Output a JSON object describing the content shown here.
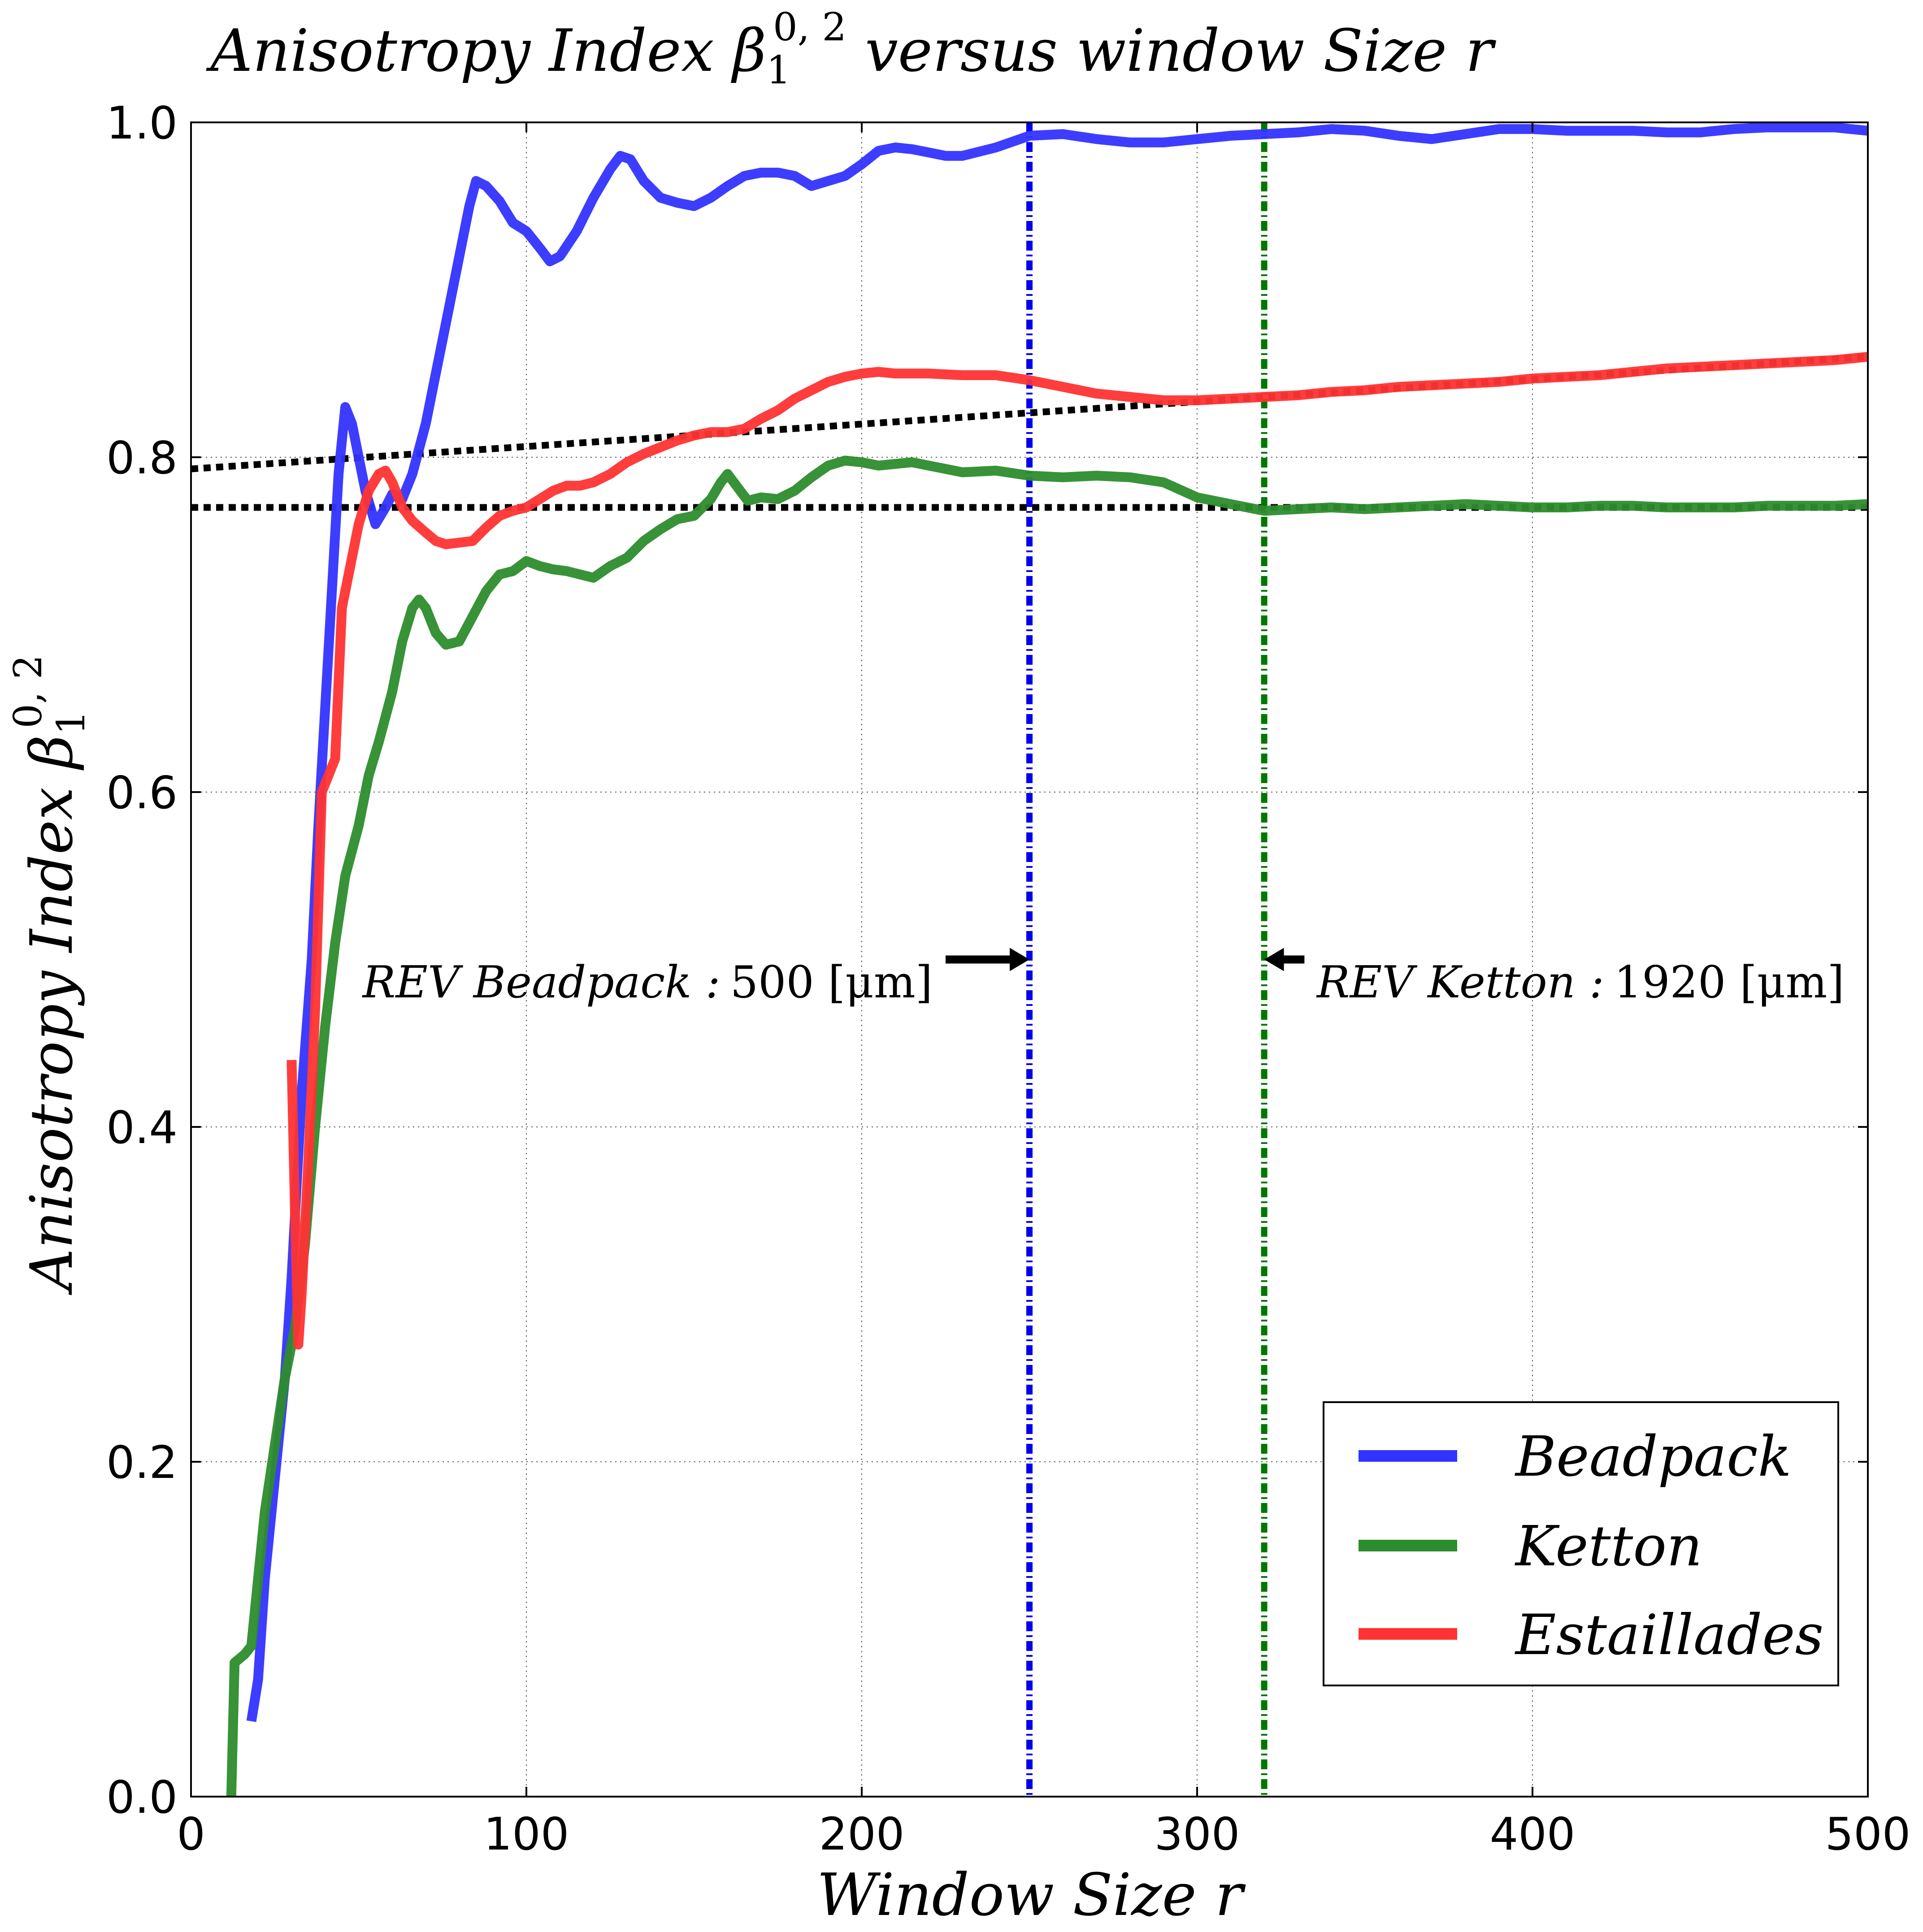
{
  "chart_data": {
    "type": "line",
    "title": "Anisotropy Index β₁^{0,2} versus window Size r",
    "title_parts": {
      "main": "Anisotropy Index ",
      "symbol": "β",
      "sub": "1",
      "sup": "0, 2",
      "tail": " versus window Size r"
    },
    "xlabel": "Window Size r",
    "ylabel": "Anisotropy Index β₁^{0,2}",
    "ylabel_parts": {
      "main": "Anisotropy Index ",
      "symbol": "β",
      "sub": "1",
      "sup": "0, 2"
    },
    "xlim": [
      0,
      500
    ],
    "ylim": [
      0.0,
      1.0
    ],
    "x_ticks": [
      0,
      100,
      200,
      300,
      400,
      500
    ],
    "x_tick_labels": [
      "0",
      "100",
      "200",
      "300",
      "400",
      "500"
    ],
    "y_ticks": [
      0.0,
      0.2,
      0.4,
      0.6,
      0.8,
      1.0
    ],
    "y_tick_labels": [
      "0.0",
      "0.2",
      "0.4",
      "0.6",
      "0.8",
      "1.0"
    ],
    "grid": true,
    "legend_position": "lower-right",
    "series": [
      {
        "name": "Beadpack",
        "color": "#3333ff",
        "points": [
          [
            18,
            0.045
          ],
          [
            20,
            0.07
          ],
          [
            22,
            0.13
          ],
          [
            25,
            0.19
          ],
          [
            28,
            0.25
          ],
          [
            30,
            0.31
          ],
          [
            33,
            0.42
          ],
          [
            36,
            0.5
          ],
          [
            38,
            0.58
          ],
          [
            40,
            0.65
          ],
          [
            42,
            0.72
          ],
          [
            44,
            0.79
          ],
          [
            46,
            0.83
          ],
          [
            48,
            0.82
          ],
          [
            50,
            0.8
          ],
          [
            52,
            0.78
          ],
          [
            55,
            0.76
          ],
          [
            58,
            0.77
          ],
          [
            60,
            0.778
          ],
          [
            63,
            0.775
          ],
          [
            66,
            0.79
          ],
          [
            70,
            0.82
          ],
          [
            73,
            0.85
          ],
          [
            76,
            0.88
          ],
          [
            80,
            0.92
          ],
          [
            83,
            0.95
          ],
          [
            85,
            0.965
          ],
          [
            88,
            0.962
          ],
          [
            92,
            0.953
          ],
          [
            96,
            0.94
          ],
          [
            100,
            0.935
          ],
          [
            104,
            0.925
          ],
          [
            107,
            0.917
          ],
          [
            110,
            0.92
          ],
          [
            115,
            0.935
          ],
          [
            120,
            0.955
          ],
          [
            125,
            0.972
          ],
          [
            128,
            0.98
          ],
          [
            131,
            0.978
          ],
          [
            135,
            0.965
          ],
          [
            140,
            0.955
          ],
          [
            145,
            0.952
          ],
          [
            150,
            0.95
          ],
          [
            155,
            0.955
          ],
          [
            160,
            0.962
          ],
          [
            165,
            0.968
          ],
          [
            170,
            0.97
          ],
          [
            175,
            0.97
          ],
          [
            180,
            0.968
          ],
          [
            185,
            0.962
          ],
          [
            190,
            0.965
          ],
          [
            195,
            0.968
          ],
          [
            200,
            0.975
          ],
          [
            205,
            0.983
          ],
          [
            210,
            0.985
          ],
          [
            215,
            0.984
          ],
          [
            220,
            0.982
          ],
          [
            225,
            0.98
          ],
          [
            230,
            0.98
          ],
          [
            240,
            0.985
          ],
          [
            250,
            0.992
          ],
          [
            260,
            0.993
          ],
          [
            270,
            0.99
          ],
          [
            280,
            0.988
          ],
          [
            290,
            0.988
          ],
          [
            300,
            0.99
          ],
          [
            310,
            0.992
          ],
          [
            320,
            0.993
          ],
          [
            330,
            0.994
          ],
          [
            340,
            0.996
          ],
          [
            350,
            0.995
          ],
          [
            360,
            0.992
          ],
          [
            370,
            0.99
          ],
          [
            380,
            0.993
          ],
          [
            390,
            0.996
          ],
          [
            400,
            0.996
          ],
          [
            410,
            0.995
          ],
          [
            420,
            0.995
          ],
          [
            430,
            0.995
          ],
          [
            440,
            0.994
          ],
          [
            450,
            0.994
          ],
          [
            460,
            0.996
          ],
          [
            470,
            0.997
          ],
          [
            480,
            0.997
          ],
          [
            490,
            0.997
          ],
          [
            500,
            0.995
          ]
        ]
      },
      {
        "name": "Ketton",
        "color": "#2d8c2d",
        "points": [
          [
            12,
            0.0
          ],
          [
            13,
            0.08
          ],
          [
            16,
            0.085
          ],
          [
            18,
            0.09
          ],
          [
            20,
            0.13
          ],
          [
            22,
            0.17
          ],
          [
            25,
            0.21
          ],
          [
            28,
            0.25
          ],
          [
            31,
            0.28
          ],
          [
            34,
            0.33
          ],
          [
            37,
            0.4
          ],
          [
            40,
            0.46
          ],
          [
            43,
            0.51
          ],
          [
            46,
            0.55
          ],
          [
            50,
            0.58
          ],
          [
            53,
            0.61
          ],
          [
            56,
            0.63
          ],
          [
            60,
            0.66
          ],
          [
            63,
            0.69
          ],
          [
            66,
            0.71
          ],
          [
            68,
            0.715
          ],
          [
            70,
            0.71
          ],
          [
            73,
            0.695
          ],
          [
            76,
            0.688
          ],
          [
            80,
            0.69
          ],
          [
            84,
            0.705
          ],
          [
            88,
            0.72
          ],
          [
            92,
            0.73
          ],
          [
            96,
            0.732
          ],
          [
            100,
            0.738
          ],
          [
            104,
            0.735
          ],
          [
            108,
            0.733
          ],
          [
            112,
            0.732
          ],
          [
            116,
            0.73
          ],
          [
            120,
            0.728
          ],
          [
            125,
            0.735
          ],
          [
            130,
            0.74
          ],
          [
            135,
            0.75
          ],
          [
            140,
            0.757
          ],
          [
            145,
            0.763
          ],
          [
            150,
            0.765
          ],
          [
            155,
            0.775
          ],
          [
            158,
            0.785
          ],
          [
            160,
            0.79
          ],
          [
            163,
            0.782
          ],
          [
            166,
            0.774
          ],
          [
            170,
            0.776
          ],
          [
            175,
            0.775
          ],
          [
            180,
            0.78
          ],
          [
            185,
            0.788
          ],
          [
            190,
            0.795
          ],
          [
            195,
            0.798
          ],
          [
            200,
            0.797
          ],
          [
            205,
            0.795
          ],
          [
            210,
            0.796
          ],
          [
            215,
            0.797
          ],
          [
            220,
            0.795
          ],
          [
            230,
            0.791
          ],
          [
            240,
            0.792
          ],
          [
            250,
            0.789
          ],
          [
            260,
            0.788
          ],
          [
            270,
            0.789
          ],
          [
            280,
            0.788
          ],
          [
            290,
            0.785
          ],
          [
            300,
            0.776
          ],
          [
            310,
            0.772
          ],
          [
            320,
            0.768
          ],
          [
            330,
            0.769
          ],
          [
            340,
            0.77
          ],
          [
            350,
            0.769
          ],
          [
            360,
            0.77
          ],
          [
            370,
            0.771
          ],
          [
            380,
            0.772
          ],
          [
            390,
            0.771
          ],
          [
            400,
            0.77
          ],
          [
            410,
            0.77
          ],
          [
            420,
            0.771
          ],
          [
            430,
            0.771
          ],
          [
            440,
            0.77
          ],
          [
            450,
            0.77
          ],
          [
            460,
            0.77
          ],
          [
            470,
            0.771
          ],
          [
            480,
            0.771
          ],
          [
            490,
            0.771
          ],
          [
            500,
            0.772
          ]
        ]
      },
      {
        "name": "Estaillades",
        "color": "#ff3333",
        "points": [
          [
            30,
            0.44
          ],
          [
            31,
            0.35
          ],
          [
            32,
            0.27
          ],
          [
            33,
            0.3
          ],
          [
            35,
            0.38
          ],
          [
            37,
            0.47
          ],
          [
            39,
            0.6
          ],
          [
            41,
            0.61
          ],
          [
            43,
            0.62
          ],
          [
            45,
            0.71
          ],
          [
            48,
            0.74
          ],
          [
            50,
            0.76
          ],
          [
            53,
            0.78
          ],
          [
            56,
            0.79
          ],
          [
            58,
            0.792
          ],
          [
            60,
            0.785
          ],
          [
            63,
            0.77
          ],
          [
            66,
            0.762
          ],
          [
            70,
            0.755
          ],
          [
            73,
            0.75
          ],
          [
            76,
            0.748
          ],
          [
            80,
            0.749
          ],
          [
            84,
            0.75
          ],
          [
            88,
            0.758
          ],
          [
            92,
            0.765
          ],
          [
            96,
            0.768
          ],
          [
            100,
            0.77
          ],
          [
            104,
            0.775
          ],
          [
            108,
            0.78
          ],
          [
            112,
            0.783
          ],
          [
            116,
            0.783
          ],
          [
            120,
            0.785
          ],
          [
            125,
            0.79
          ],
          [
            130,
            0.797
          ],
          [
            135,
            0.802
          ],
          [
            140,
            0.806
          ],
          [
            145,
            0.81
          ],
          [
            150,
            0.813
          ],
          [
            155,
            0.815
          ],
          [
            160,
            0.815
          ],
          [
            165,
            0.817
          ],
          [
            170,
            0.823
          ],
          [
            175,
            0.828
          ],
          [
            180,
            0.835
          ],
          [
            185,
            0.84
          ],
          [
            190,
            0.845
          ],
          [
            195,
            0.848
          ],
          [
            200,
            0.85
          ],
          [
            205,
            0.851
          ],
          [
            210,
            0.85
          ],
          [
            220,
            0.85
          ],
          [
            230,
            0.849
          ],
          [
            240,
            0.849
          ],
          [
            250,
            0.846
          ],
          [
            260,
            0.842
          ],
          [
            270,
            0.838
          ],
          [
            280,
            0.836
          ],
          [
            290,
            0.834
          ],
          [
            300,
            0.834
          ],
          [
            310,
            0.835
          ],
          [
            320,
            0.836
          ],
          [
            330,
            0.837
          ],
          [
            340,
            0.839
          ],
          [
            350,
            0.84
          ],
          [
            360,
            0.842
          ],
          [
            370,
            0.843
          ],
          [
            380,
            0.844
          ],
          [
            390,
            0.845
          ],
          [
            400,
            0.847
          ],
          [
            410,
            0.848
          ],
          [
            420,
            0.849
          ],
          [
            430,
            0.851
          ],
          [
            440,
            0.853
          ],
          [
            450,
            0.854
          ],
          [
            460,
            0.855
          ],
          [
            470,
            0.856
          ],
          [
            480,
            0.857
          ],
          [
            490,
            0.858
          ],
          [
            500,
            0.86
          ]
        ]
      }
    ],
    "reference_lines": [
      {
        "kind": "dotted",
        "color": "#000000",
        "points": [
          [
            0,
            0.793
          ],
          [
            500,
            0.86
          ]
        ]
      },
      {
        "kind": "dotted",
        "color": "#000000",
        "points": [
          [
            0,
            0.77
          ],
          [
            500,
            0.77
          ]
        ]
      },
      {
        "kind": "vertical-dashdot",
        "color": "#0000ee",
        "x": 250
      },
      {
        "kind": "vertical-dashdot",
        "color": "#007700",
        "x": 320
      }
    ],
    "annotations": [
      {
        "name": "Beadpack",
        "label": "REV Beadpack :",
        "value": "500 [μm]",
        "arrow_from": [
          225,
          0.5
        ],
        "arrow_to": [
          250,
          0.5
        ],
        "side": "left"
      },
      {
        "name": "Ketton",
        "label": "REV Ketton :",
        "value": "1920 [μm]",
        "arrow_from": [
          332,
          0.5
        ],
        "arrow_to": [
          320,
          0.5
        ],
        "side": "right"
      }
    ]
  }
}
